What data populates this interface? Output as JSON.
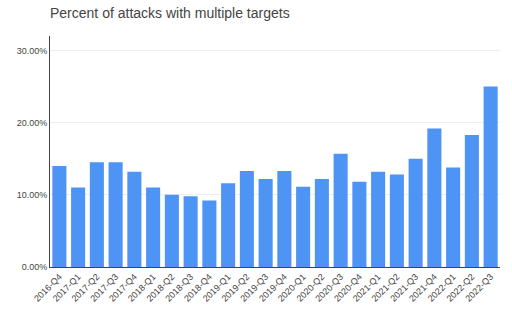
{
  "chart_data": {
    "type": "bar",
    "title": "Percent of attacks with multiple targets",
    "categories": [
      "2016-Q4",
      "2017-Q1",
      "2017-Q2",
      "2017-Q3",
      "2017-Q4",
      "2018-Q1",
      "2018-Q2",
      "2018-Q3",
      "2018-Q4",
      "2019-Q1",
      "2019-Q2",
      "2019-Q3",
      "2019-Q4",
      "2020-Q1",
      "2020-Q2",
      "2020-Q3",
      "2020-Q4",
      "2021-Q1",
      "2021-Q2",
      "2021-Q3",
      "2021-Q4",
      "2022-Q1",
      "2022-Q2",
      "2022-Q3"
    ],
    "values": [
      14.0,
      11.0,
      14.5,
      14.5,
      13.2,
      11.0,
      10.0,
      9.8,
      9.2,
      11.6,
      13.3,
      12.2,
      13.3,
      11.1,
      12.2,
      15.7,
      11.8,
      13.2,
      12.8,
      15.0,
      19.2,
      13.8,
      18.3,
      25.0
    ],
    "color": "#4d94f5",
    "ylim": [
      0,
      32
    ],
    "yticks": [
      {
        "value": 0,
        "label": "0.00%"
      },
      {
        "value": 10,
        "label": "10.00%"
      },
      {
        "value": 20,
        "label": "20.00%"
      },
      {
        "value": 30,
        "label": "30.00%"
      }
    ],
    "grid": true
  }
}
